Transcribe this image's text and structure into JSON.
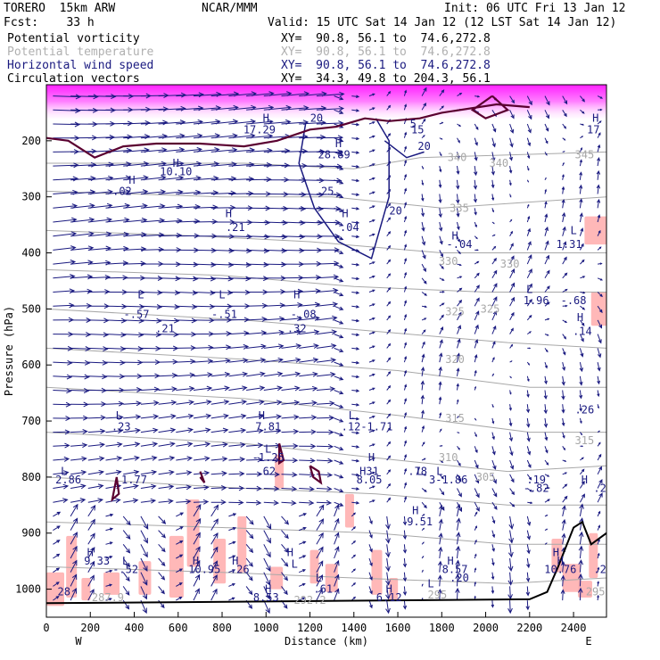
{
  "header": {
    "model": "TORERO  15km ARW",
    "center": "NCAR/MMM",
    "init": "Init: 06 UTC Fri 13 Jan 12",
    "fcst": "Fcst:    33 h",
    "valid": "Valid: 15 UTC Sat 14 Jan 12 (12 LST Sat 14 Jan 12)",
    "fields": [
      {
        "name": "Potential vorticity",
        "xy": "XY=  90.8, 56.1 to  74.6,272.8",
        "color": "#000000"
      },
      {
        "name": "Potential temperature",
        "xy": "XY=  90.8, 56.1 to  74.6,272.8",
        "color": "#b0b0b0"
      },
      {
        "name": "Horizontal wind speed",
        "xy": "XY=  90.8, 56.1 to  74.6,272.8",
        "color": "#1a1a80"
      },
      {
        "name": "Circulation vectors",
        "xy": "XY=  34.3, 49.8 to 204.3, 56.1",
        "color": "#000000"
      }
    ]
  },
  "chart_data": {
    "type": "cross-section",
    "xlabel": "Distance (km)",
    "ylabel": "Pressure (hPa)",
    "xlim": [
      0,
      2550
    ],
    "ylim": [
      1050,
      100
    ],
    "x_ticks": [
      0,
      200,
      400,
      600,
      800,
      1000,
      1200,
      1400,
      1600,
      1800,
      2000,
      2200,
      2400
    ],
    "y_ticks": [
      200,
      300,
      400,
      500,
      600,
      700,
      800,
      900,
      1000
    ],
    "endpoints": {
      "left": "W",
      "right": "E"
    },
    "colors": {
      "pv": "#5a0030",
      "theta": "#a8a8a8",
      "wind": "#1a1a80",
      "vectors": "#1a1a80",
      "pv_fill": "#ffb0b0",
      "pv_high_fill": "#ff40ff",
      "terrain": "#000000"
    },
    "theta_labels": [
      {
        "x": 1870,
        "p": 230,
        "v": "340"
      },
      {
        "x": 2060,
        "p": 240,
        "v": "340"
      },
      {
        "x": 1880,
        "p": 320,
        "v": "335"
      },
      {
        "x": 1830,
        "p": 415,
        "v": "330"
      },
      {
        "x": 2110,
        "p": 420,
        "v": "330"
      },
      {
        "x": 1860,
        "p": 505,
        "v": "325"
      },
      {
        "x": 2020,
        "p": 500,
        "v": "325"
      },
      {
        "x": 1860,
        "p": 590,
        "v": "320"
      },
      {
        "x": 1860,
        "p": 695,
        "v": "315"
      },
      {
        "x": 1830,
        "p": 765,
        "v": "310"
      },
      {
        "x": 2000,
        "p": 800,
        "v": "305"
      },
      {
        "x": 1780,
        "p": 1010,
        "v": "295"
      },
      {
        "x": 2500,
        "p": 1005,
        "v": "295"
      },
      {
        "x": 2450,
        "p": 225,
        "v": "345"
      },
      {
        "x": 2450,
        "p": 735,
        "v": "315"
      },
      {
        "x": 1200,
        "p": 1020,
        "v": "292.2"
      },
      {
        "x": 280,
        "p": 1015,
        "v": "287.9"
      }
    ],
    "wind_labels": [
      {
        "x": 1230,
        "p": 160,
        "v": "20"
      },
      {
        "x": 1720,
        "p": 210,
        "v": "20"
      },
      {
        "x": 1280,
        "p": 290,
        "v": "25"
      },
      {
        "x": 1590,
        "p": 325,
        "v": "20"
      },
      {
        "x": 1690,
        "p": 180,
        "v": "15"
      },
      {
        "x": 1670,
        "p": 170,
        "v": "5"
      }
    ],
    "extrema": [
      {
        "x": 1000,
        "p": 160,
        "t": "H"
      },
      {
        "x": 970,
        "p": 180,
        "t": "17.29"
      },
      {
        "x": 1330,
        "p": 205,
        "t": "H"
      },
      {
        "x": 1310,
        "p": 225,
        "t": "28.89"
      },
      {
        "x": 2500,
        "p": 160,
        "t": "H"
      },
      {
        "x": 2490,
        "p": 180,
        "t": "17"
      },
      {
        "x": 390,
        "p": 270,
        "t": "H"
      },
      {
        "x": 345,
        "p": 290,
        "t": ".02"
      },
      {
        "x": 590,
        "p": 240,
        "t": "H"
      },
      {
        "x": 590,
        "p": 255,
        "t": "10.10"
      },
      {
        "x": 830,
        "p": 330,
        "t": "H"
      },
      {
        "x": 860,
        "p": 355,
        "t": ".21"
      },
      {
        "x": 1360,
        "p": 330,
        "t": "H"
      },
      {
        "x": 1380,
        "p": 355,
        "t": ".04"
      },
      {
        "x": 1860,
        "p": 370,
        "t": "H"
      },
      {
        "x": 1880,
        "p": 385,
        "t": "-.04"
      },
      {
        "x": 2400,
        "p": 360,
        "t": "L"
      },
      {
        "x": 2380,
        "p": 385,
        "t": "1.31"
      },
      {
        "x": 2200,
        "p": 465,
        "t": "L"
      },
      {
        "x": 2230,
        "p": 485,
        "t": "1.96"
      },
      {
        "x": 2400,
        "p": 485,
        "t": "-.68"
      },
      {
        "x": 430,
        "p": 475,
        "t": "L"
      },
      {
        "x": 410,
        "p": 510,
        "t": "-.57"
      },
      {
        "x": 540,
        "p": 535,
        "t": ".21"
      },
      {
        "x": 800,
        "p": 475,
        "t": "L"
      },
      {
        "x": 810,
        "p": 510,
        "t": "-.51"
      },
      {
        "x": 1140,
        "p": 475,
        "t": "H"
      },
      {
        "x": 1170,
        "p": 510,
        "t": "-.08"
      },
      {
        "x": 1140,
        "p": 535,
        "t": ".32"
      },
      {
        "x": 2430,
        "p": 515,
        "t": "H"
      },
      {
        "x": 2440,
        "p": 540,
        "t": ".14"
      },
      {
        "x": 2450,
        "p": 680,
        "t": ".26"
      },
      {
        "x": 330,
        "p": 690,
        "t": "L"
      },
      {
        "x": 340,
        "p": 710,
        "t": ".23"
      },
      {
        "x": 980,
        "p": 690,
        "t": "H"
      },
      {
        "x": 1010,
        "p": 710,
        "t": "7.81"
      },
      {
        "x": 1390,
        "p": 690,
        "t": "L"
      },
      {
        "x": 1460,
        "p": 710,
        "t": ".12-1.71"
      },
      {
        "x": 1010,
        "p": 750,
        "t": "L"
      },
      {
        "x": 1010,
        "p": 765,
        "t": "-1.25"
      },
      {
        "x": 1000,
        "p": 790,
        "t": ".62"
      },
      {
        "x": 1480,
        "p": 765,
        "t": "H"
      },
      {
        "x": 1470,
        "p": 790,
        "t": "H31"
      },
      {
        "x": 1700,
        "p": 790,
        "t": "L"
      },
      {
        "x": 1690,
        "p": 790,
        "t": ".78"
      },
      {
        "x": 1790,
        "p": 790,
        "t": "L"
      },
      {
        "x": 1830,
        "p": 805,
        "t": "3-1.86"
      },
      {
        "x": 1470,
        "p": 805,
        "t": "8.05"
      },
      {
        "x": 80,
        "p": 790,
        "t": "L"
      },
      {
        "x": 100,
        "p": 805,
        "t": "2.86"
      },
      {
        "x": 400,
        "p": 805,
        "t": "1.77"
      },
      {
        "x": 2230,
        "p": 805,
        "t": ".19"
      },
      {
        "x": 2230,
        "p": 820,
        "t": "-.82"
      },
      {
        "x": 2450,
        "p": 805,
        "t": "H"
      },
      {
        "x": 2520,
        "p": 820,
        "t": ".2"
      },
      {
        "x": 1680,
        "p": 860,
        "t": "H"
      },
      {
        "x": 1700,
        "p": 880,
        "t": "9.51"
      },
      {
        "x": 200,
        "p": 935,
        "t": "H"
      },
      {
        "x": 230,
        "p": 950,
        "t": "9.33"
      },
      {
        "x": 360,
        "p": 950,
        "t": "L"
      },
      {
        "x": 360,
        "p": 965,
        "t": "-.52"
      },
      {
        "x": 680,
        "p": 950,
        "t": "H"
      },
      {
        "x": 720,
        "p": 965,
        "t": "10.95"
      },
      {
        "x": 860,
        "p": 950,
        "t": "H"
      },
      {
        "x": 880,
        "p": 965,
        "t": ".26"
      },
      {
        "x": 1110,
        "p": 935,
        "t": "H"
      },
      {
        "x": 1130,
        "p": 955,
        "t": "L"
      },
      {
        "x": 1840,
        "p": 950,
        "t": "H"
      },
      {
        "x": 1860,
        "p": 965,
        "t": "8.57"
      },
      {
        "x": 1880,
        "p": 980,
        "t": ".20"
      },
      {
        "x": 2320,
        "p": 935,
        "t": "H"
      },
      {
        "x": 2340,
        "p": 950,
        "t": "H"
      },
      {
        "x": 2340,
        "p": 965,
        "t": "10.76"
      },
      {
        "x": 2520,
        "p": 965,
        "t": ".2"
      },
      {
        "x": 1240,
        "p": 980,
        "t": "L"
      },
      {
        "x": 1260,
        "p": 1000,
        "t": ".61"
      },
      {
        "x": 80,
        "p": 1005,
        "t": "28"
      },
      {
        "x": 1010,
        "p": 1000,
        "t": "H"
      },
      {
        "x": 1000,
        "p": 1015,
        "t": "8.53"
      },
      {
        "x": 1560,
        "p": 1000,
        "t": "H"
      },
      {
        "x": 1560,
        "p": 1015,
        "t": "6.12"
      },
      {
        "x": 1750,
        "p": 990,
        "t": "L"
      }
    ]
  }
}
